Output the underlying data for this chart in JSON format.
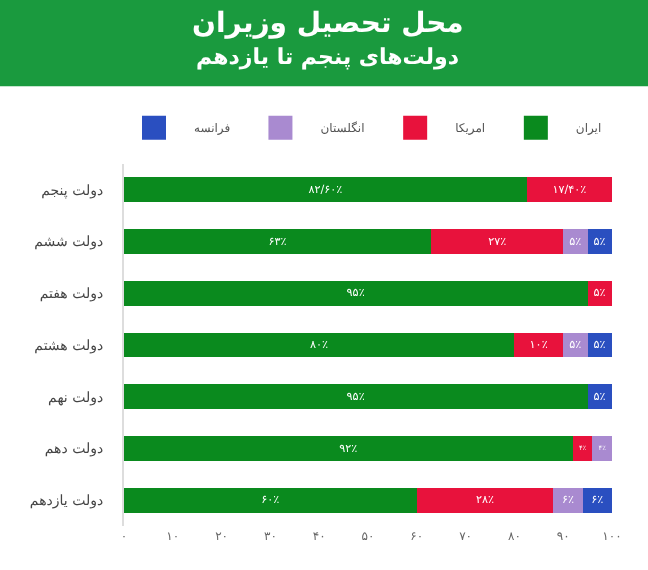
{
  "chart_data": {
    "type": "bar",
    "orientation": "horizontal",
    "stacked": true,
    "title": "محل تحصیل وزیران",
    "subtitle": "دولت‌های پنجم تا یازدهم",
    "categories": [
      "دولت پنجم",
      "دولت ششم",
      "دولت هفتم",
      "دولت هشتم",
      "دولت نهم",
      "دولت دهم",
      "دولت یازدهم"
    ],
    "series": [
      {
        "name": "ایران",
        "color": "#0a8a1e",
        "values": [
          82.6,
          63,
          95,
          80,
          95,
          92,
          60
        ],
        "value_labels": [
          "۸۲/۶۰٪",
          "۶۳٪",
          "۹۵٪",
          "۸۰٪",
          "۹۵٪",
          "۹۲٪",
          "۶۰٪"
        ]
      },
      {
        "name": "امریکا",
        "color": "#e8123c",
        "values": [
          17.4,
          27,
          5,
          10,
          null,
          4,
          28
        ],
        "value_labels": [
          "۱۷/۴۰٪",
          "۲۷٪",
          "۵٪",
          "۱۰٪",
          null,
          "۴٪",
          "۲۸٪"
        ]
      },
      {
        "name": "انگلستان",
        "color": "#a98ad0",
        "values": [
          null,
          5,
          null,
          5,
          null,
          4,
          6
        ],
        "value_labels": [
          null,
          "۵٪",
          null,
          "۵٪",
          null,
          "۴٪",
          "۶٪"
        ]
      },
      {
        "name": "فرانسه",
        "color": "#2a4fc0",
        "values": [
          null,
          5,
          null,
          5,
          5,
          null,
          6
        ],
        "value_labels": [
          null,
          "۵٪",
          null,
          "۵٪",
          "۵٪",
          null,
          "۶٪"
        ]
      }
    ],
    "xlim": [
      0,
      100
    ],
    "xticks": [
      {
        "value": 0,
        "label": "۰"
      },
      {
        "value": 10,
        "label": "۱۰"
      },
      {
        "value": 20,
        "label": "۲۰"
      },
      {
        "value": 30,
        "label": "۳۰"
      },
      {
        "value": 40,
        "label": "۴۰"
      },
      {
        "value": 50,
        "label": "۵۰"
      },
      {
        "value": 60,
        "label": "۶۰"
      },
      {
        "value": 70,
        "label": "۷۰"
      },
      {
        "value": 80,
        "label": "۸۰"
      },
      {
        "value": 90,
        "label": "۹۰"
      },
      {
        "value": 100,
        "label": "۱۰۰"
      }
    ],
    "legend": "top"
  }
}
